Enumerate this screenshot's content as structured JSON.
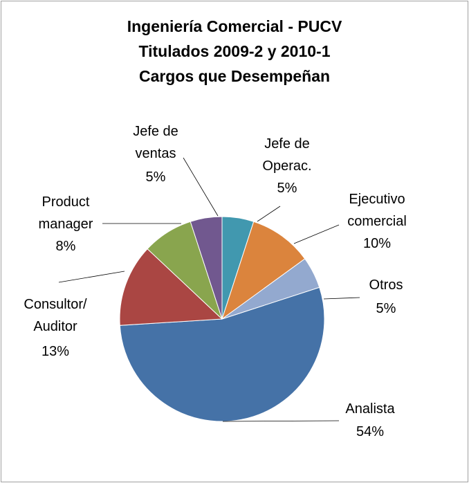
{
  "chart_data": {
    "type": "pie",
    "title": "Ingeniería Comercial - PUCV\nTitulados 2009-2 y 2010-1\nCargos que Desempeñan",
    "categories": [
      "Analista",
      "Consultor/\nAuditor",
      "Product\nmanager",
      "Jefe de\nventas",
      "Jefe de\nOperac.",
      "Ejecutivo\ncomercial",
      "Otros"
    ],
    "values": [
      54,
      13,
      8,
      5,
      5,
      10,
      5
    ],
    "value_labels": [
      "54%",
      "13%",
      "8%",
      "5%",
      "5%",
      "10%",
      "5%"
    ],
    "colors": [
      "#4572a7",
      "#aa4643",
      "#89a54e",
      "#71588f",
      "#4198af",
      "#db843d",
      "#93a9cf"
    ],
    "start_angle": 72
  }
}
